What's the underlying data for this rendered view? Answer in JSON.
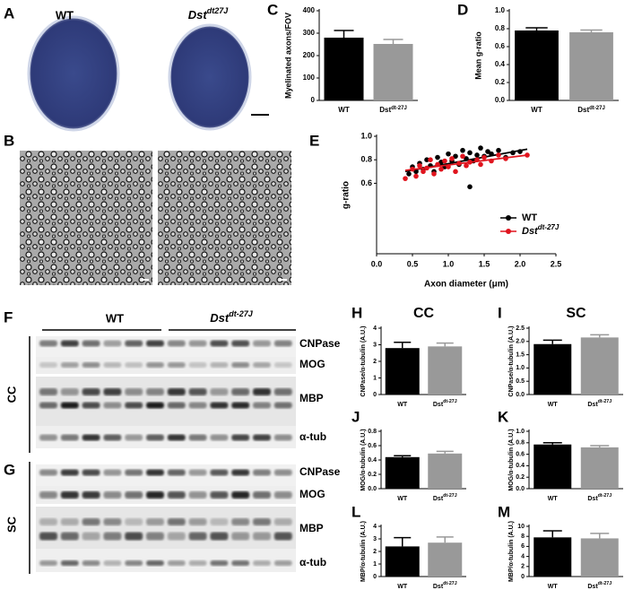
{
  "figure": {
    "panel_A": {
      "letter": "A",
      "wt": "WT",
      "mutant": "Dst",
      "mutant_superscript": "dt27J"
    },
    "panel_B": {
      "letter": "B"
    },
    "panel_F": {
      "letter": "F",
      "region": "CC",
      "wt": "WT",
      "mutant": "Dst",
      "mutant_superscript": "dt-27J",
      "rows": [
        "CNPase",
        "MOG",
        "MBP",
        "α-tub"
      ]
    },
    "panel_G": {
      "letter": "G",
      "region": "SC",
      "rows": [
        "CNPase",
        "MOG",
        "MBP",
        "α-tub"
      ]
    }
  },
  "chart_data": [
    {
      "type": "bar",
      "panel": "C",
      "ylabel": "Myelinated axons/FOV",
      "categories": [
        "WT",
        "Dst"
      ],
      "category_superscripts": [
        null,
        "dt-27J"
      ],
      "values": [
        280,
        252
      ],
      "errors": [
        32,
        20
      ],
      "colors": [
        "#000000",
        "#999999"
      ],
      "ylim": [
        0,
        400
      ],
      "yticks": [
        0,
        100,
        200,
        300,
        400
      ]
    },
    {
      "type": "bar",
      "panel": "D",
      "ylabel": "Mean g-ratio",
      "categories": [
        "WT",
        "Dst"
      ],
      "category_superscripts": [
        null,
        "dt-27J"
      ],
      "values": [
        0.78,
        0.76
      ],
      "errors": [
        0.03,
        0.025
      ],
      "colors": [
        "#000000",
        "#999999"
      ],
      "ylim": [
        0,
        1.0
      ],
      "yticks": [
        {
          "value": 0,
          "label": "0.0"
        },
        0.2,
        0.4,
        0.6,
        0.8,
        {
          "value": 1,
          "label": "1.0"
        }
      ]
    },
    {
      "type": "scatter",
      "panel": "E",
      "ylabel": "g-ratio",
      "xlabel": "Axon diameter (μm)",
      "xlim": [
        0,
        2.5
      ],
      "ylim": [
        0,
        1.0
      ],
      "xticks": [
        {
          "value": 0,
          "label": "0.0"
        },
        0.5,
        {
          "value": 1,
          "label": "1.0"
        },
        1.5,
        {
          "value": 2,
          "label": "2.0"
        },
        2.5
      ],
      "yticks": [
        0.6,
        0.8,
        {
          "value": 1,
          "label": "1.0"
        }
      ],
      "series": [
        {
          "name": "WT",
          "color": "#000000",
          "x": [
            0.45,
            0.5,
            0.55,
            0.6,
            0.65,
            0.7,
            0.75,
            0.8,
            0.85,
            0.9,
            0.95,
            1.0,
            1.05,
            1.1,
            1.15,
            1.2,
            1.25,
            1.3,
            1.3,
            1.35,
            1.4,
            1.45,
            1.5,
            1.55,
            1.6,
            1.7,
            1.8,
            1.9,
            2.0
          ],
          "y": [
            0.68,
            0.74,
            0.7,
            0.77,
            0.72,
            0.8,
            0.75,
            0.7,
            0.82,
            0.78,
            0.74,
            0.85,
            0.79,
            0.83,
            0.76,
            0.88,
            0.81,
            0.86,
            0.57,
            0.79,
            0.84,
            0.9,
            0.83,
            0.87,
            0.85,
            0.88,
            0.82,
            0.86,
            0.87
          ],
          "fit": {
            "x": [
              0.4,
              2.1
            ],
            "y": [
              0.7,
              0.89
            ]
          }
        },
        {
          "name": "Dst",
          "name_superscript": "dt-27J",
          "color": "#e0141e",
          "x": [
            0.4,
            0.5,
            0.55,
            0.6,
            0.65,
            0.7,
            0.75,
            0.8,
            0.85,
            0.9,
            0.95,
            1.0,
            1.05,
            1.1,
            1.15,
            1.2,
            1.25,
            1.3,
            1.4,
            1.45,
            1.5,
            1.6,
            1.7,
            1.8,
            2.1
          ],
          "y": [
            0.64,
            0.72,
            0.66,
            0.75,
            0.7,
            0.73,
            0.8,
            0.68,
            0.76,
            0.72,
            0.79,
            0.74,
            0.81,
            0.7,
            0.77,
            0.83,
            0.75,
            0.78,
            0.8,
            0.76,
            0.82,
            0.79,
            0.84,
            0.81,
            0.84
          ],
          "fit": {
            "x": [
              0.4,
              2.1
            ],
            "y": [
              0.71,
              0.84
            ]
          }
        }
      ]
    },
    {
      "type": "bar",
      "panel": "H",
      "title": "CC",
      "ylabel": "CNPase/α-tubulin (A.U.)",
      "categories": [
        "WT",
        "Dst"
      ],
      "category_superscripts": [
        null,
        "dt-27J"
      ],
      "values": [
        2.8,
        2.9
      ],
      "errors": [
        0.35,
        0.2
      ],
      "colors": [
        "#000000",
        "#999999"
      ],
      "ylim": [
        0,
        4
      ],
      "yticks": [
        0,
        1,
        2,
        3,
        4
      ]
    },
    {
      "type": "bar",
      "panel": "I",
      "title": "SC",
      "ylabel": "CNPase/α-tubulin (A.U.)",
      "categories": [
        "WT",
        "Dst"
      ],
      "category_superscripts": [
        null,
        "dt-27J"
      ],
      "values": [
        1.9,
        2.15
      ],
      "errors": [
        0.15,
        0.1
      ],
      "colors": [
        "#000000",
        "#999999"
      ],
      "ylim": [
        0,
        2.5
      ],
      "yticks": [
        {
          "value": 0,
          "label": "0.0"
        },
        0.5,
        {
          "value": 1,
          "label": "1.0"
        },
        1.5,
        {
          "value": 2,
          "label": "2.0"
        },
        2.5
      ]
    },
    {
      "type": "bar",
      "panel": "J",
      "ylabel": "MOG/α-tubulin (A.U.)",
      "categories": [
        "WT",
        "Dst"
      ],
      "category_superscripts": [
        null,
        "dt-27J"
      ],
      "values": [
        0.44,
        0.49
      ],
      "errors": [
        0.02,
        0.03
      ],
      "colors": [
        "#000000",
        "#999999"
      ],
      "ylim": [
        0,
        0.8
      ],
      "yticks": [
        {
          "value": 0,
          "label": "0.0"
        },
        0.2,
        0.4,
        0.6,
        0.8
      ]
    },
    {
      "type": "bar",
      "panel": "K",
      "ylabel": "MOG/α-tubulin (A.U.)",
      "categories": [
        "WT",
        "Dst"
      ],
      "category_superscripts": [
        null,
        "dt-27J"
      ],
      "values": [
        0.77,
        0.72
      ],
      "errors": [
        0.03,
        0.03
      ],
      "colors": [
        "#000000",
        "#999999"
      ],
      "ylim": [
        0,
        1.0
      ],
      "yticks": [
        {
          "value": 0,
          "label": "0.0"
        },
        0.2,
        0.4,
        0.6,
        0.8,
        {
          "value": 1,
          "label": "1.0"
        }
      ]
    },
    {
      "type": "bar",
      "panel": "L",
      "ylabel": "MBP/α-tubulin (A.U.)",
      "categories": [
        "WT",
        "Dst"
      ],
      "category_superscripts": [
        null,
        "dt-27J"
      ],
      "values": [
        2.4,
        2.7
      ],
      "errors": [
        0.7,
        0.45
      ],
      "colors": [
        "#000000",
        "#999999"
      ],
      "ylim": [
        0,
        4
      ],
      "yticks": [
        0,
        1,
        2,
        3,
        4
      ]
    },
    {
      "type": "bar",
      "panel": "M",
      "ylabel": "MBP/α-tubulin (A.U.)",
      "categories": [
        "WT",
        "Dst"
      ],
      "category_superscripts": [
        null,
        "dt-27J"
      ],
      "values": [
        7.8,
        7.6
      ],
      "errors": [
        1.3,
        1.0
      ],
      "colors": [
        "#000000",
        "#999999"
      ],
      "ylim": [
        0,
        10
      ],
      "yticks": [
        0,
        2,
        4,
        6,
        8,
        10
      ]
    }
  ]
}
